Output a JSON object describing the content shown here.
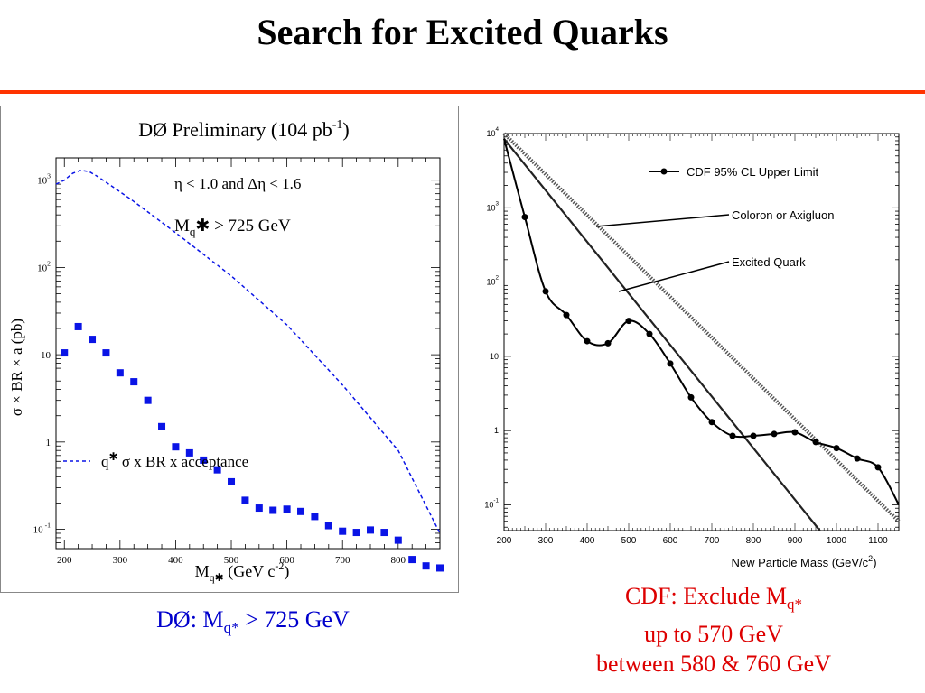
{
  "title": "Search for Excited Quarks",
  "colors": {
    "rule": "#ff3300",
    "d0": "#0a14e6",
    "cdf_caption": "#dd0000",
    "d0_caption": "#0000cc"
  },
  "captions": {
    "d0_prefix": "DØ: M",
    "d0_sub": "q*",
    "d0_suffix": " > 725 GeV",
    "cdf_line1_prefix": "CDF: Exclude M",
    "cdf_line1_sub": "q*",
    "cdf_line2": "up to 570 GeV",
    "cdf_line3": "between 580 & 760 GeV"
  },
  "chart_data": [
    {
      "type": "scatter",
      "title_main": "DØ Preliminary (104 pb",
      "title_sup": "-1",
      "title_end": ")",
      "xlabel_main": "M",
      "xlabel_sub": "q✱",
      "xlabel_unit_main": " (GeV c",
      "xlabel_unit_sup": "-2",
      "xlabel_unit_end": ")",
      "ylabel": "σ × BR  × a (pb)",
      "xlim": [
        185,
        875
      ],
      "ylim_log": [
        0.06,
        1800
      ],
      "log_y": true,
      "x_ticks": [
        "200",
        "300",
        "400",
        "500",
        "600",
        "700",
        "800"
      ],
      "y_ticks": [
        {
          "main": "10",
          "sup": "3",
          "value": 1000
        },
        {
          "main": "10",
          "sup": "2",
          "value": 100
        },
        {
          "main": "10",
          "sup": "",
          "value": 10
        },
        {
          "main": "1",
          "sup": "",
          "value": 1
        },
        {
          "main": "10",
          "sup": " -1",
          "value": 0.1
        }
      ],
      "annotation_cuts": "η < 1.0 and Δη < 1.6",
      "annotation_limit_main": "M",
      "annotation_limit_sub": "q",
      "annotation_limit_rest": "✱ > 725 GeV",
      "legend": {
        "label_q": "q",
        "label_star": "✱",
        "label_rest": " σ x BR x acceptance",
        "placement": "bottom-left"
      },
      "series": [
        {
          "style": "markers",
          "x": [
            200,
            225,
            250,
            275,
            300,
            325,
            350,
            375,
            400,
            425,
            450,
            475,
            500,
            525,
            550,
            575,
            600,
            625,
            650,
            675,
            700,
            725,
            750,
            775,
            800,
            825,
            850,
            875
          ],
          "y": [
            10.5,
            21,
            15,
            10.5,
            6.2,
            4.9,
            3.0,
            1.5,
            0.88,
            0.75,
            0.62,
            0.48,
            0.35,
            0.215,
            0.175,
            0.165,
            0.17,
            0.16,
            0.14,
            0.11,
            0.095,
            0.092,
            0.098,
            0.092,
            0.075,
            0.045,
            0.038,
            0.036
          ]
        },
        {
          "style": "dashed",
          "x": [
            185,
            200,
            215,
            230,
            245,
            260,
            280,
            320,
            400,
            500,
            600,
            700,
            800,
            875
          ],
          "y": [
            900,
            1000,
            1200,
            1300,
            1250,
            1100,
            900,
            600,
            250,
            80,
            22,
            4.5,
            0.8,
            0.09
          ]
        }
      ]
    },
    {
      "type": "line",
      "xlabel_main": "New Particle Mass (GeV/c",
      "xlabel_sup": "2",
      "xlabel_end": ")",
      "xlim": [
        200,
        1150
      ],
      "log_y": true,
      "ylim_log": [
        0.045,
        10000
      ],
      "x_ticks": [
        "200",
        "300",
        "400",
        "500",
        "600",
        "700",
        "800",
        "900",
        "1000",
        "1100"
      ],
      "y_ticks": [
        {
          "main": "10",
          "sup": "4",
          "value": 10000
        },
        {
          "main": "10",
          "sup": "3",
          "value": 1000
        },
        {
          "main": "10",
          "sup": "2",
          "value": 100
        },
        {
          "main": "10",
          "sup": "",
          "value": 10
        },
        {
          "main": "1",
          "sup": "",
          "value": 1
        },
        {
          "main": "10",
          "sup": "-1",
          "value": 0.1
        }
      ],
      "legend_label": "CDF 95% CL Upper Limit",
      "annotations": [
        "Coloron or Axigluon",
        "Excited Quark"
      ],
      "series": [
        {
          "name": "CDF 95% CL Upper Limit",
          "x": [
            200,
            250,
            300,
            350,
            400,
            450,
            500,
            550,
            600,
            650,
            700,
            750,
            800,
            850,
            900,
            950,
            1000,
            1050,
            1100,
            1150
          ],
          "y": [
            8500,
            750,
            75,
            36,
            16,
            15,
            30,
            20,
            8,
            2.8,
            1.3,
            0.85,
            0.85,
            0.9,
            0.95,
            0.7,
            0.58,
            0.42,
            0.32,
            0.1
          ]
        },
        {
          "name": "Coloron or Axigluon",
          "style": "dotted",
          "x": [
            200,
            1150
          ],
          "y": [
            10000,
            0.06
          ]
        },
        {
          "name": "Excited Quark",
          "x": [
            200,
            960
          ],
          "y": [
            8500,
            0.045
          ]
        }
      ]
    }
  ]
}
